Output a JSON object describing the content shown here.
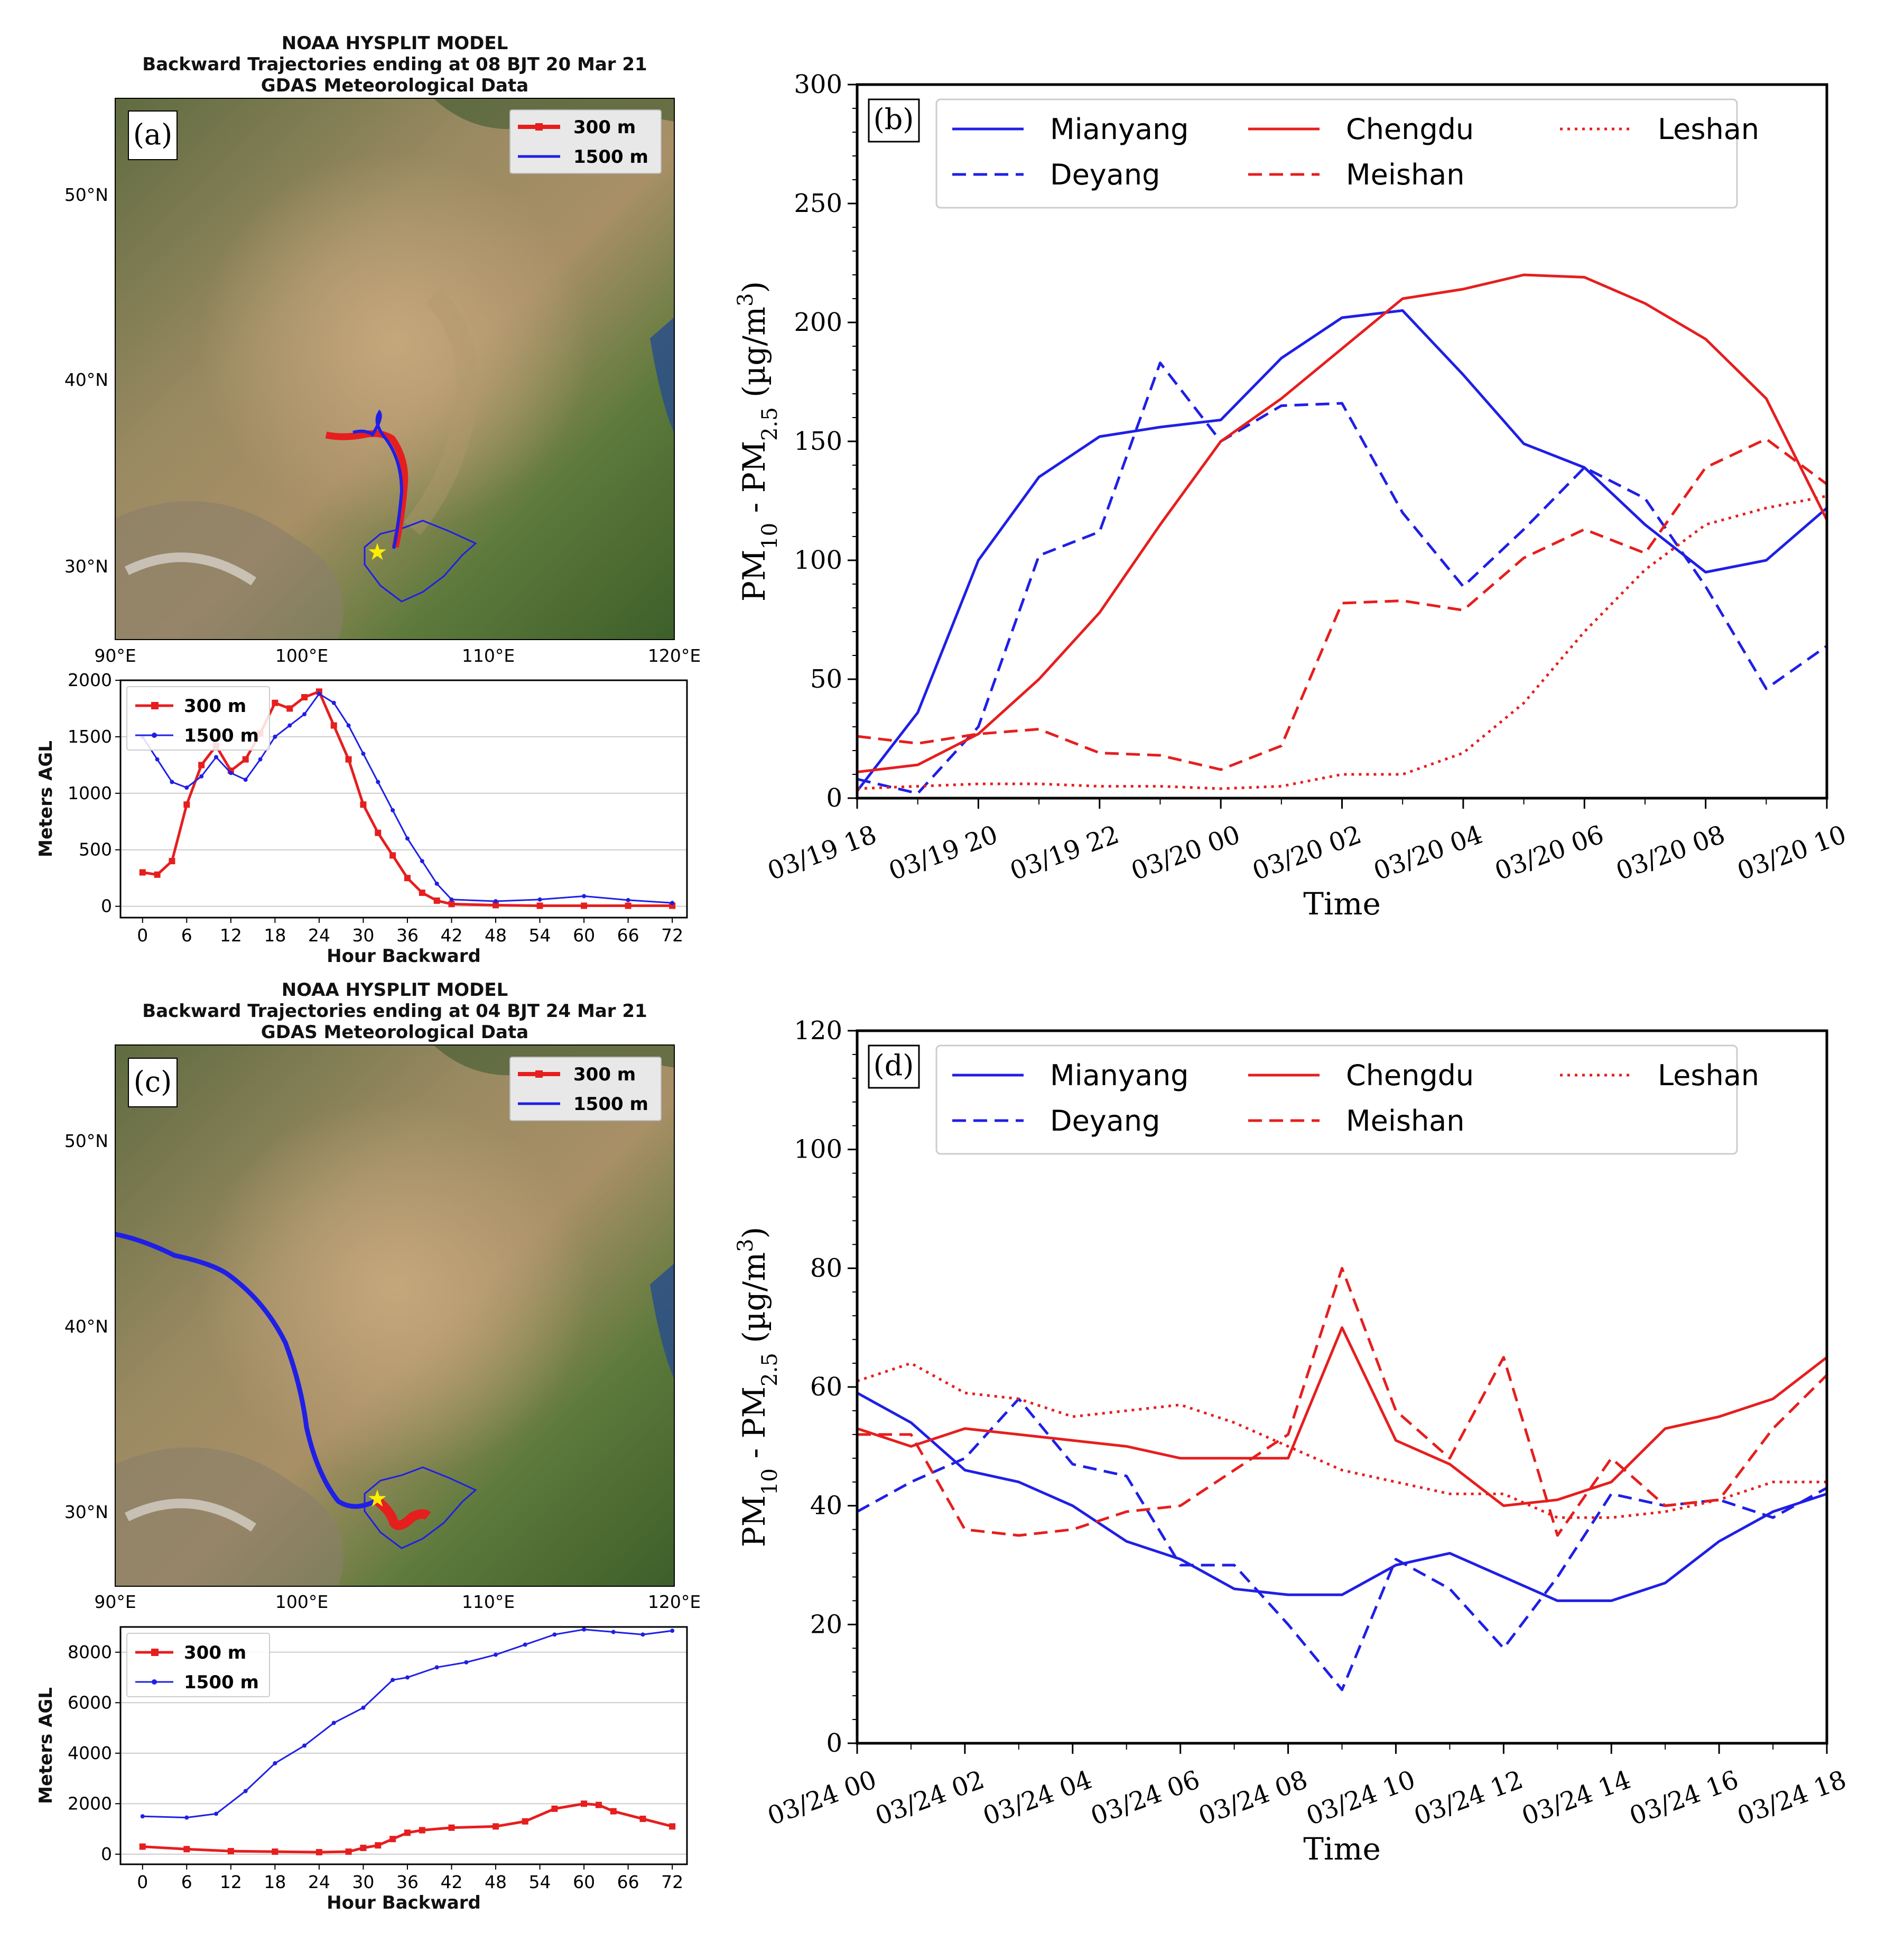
{
  "panels": {
    "a": {
      "label": "(a)",
      "title": [
        "NOAA HYSPLIT MODEL",
        "Backward Trajectories ending at 08 BJT 20 Mar 21",
        "GDAS Meteorological Data"
      ],
      "lat_ticks": [
        "50°N",
        "40°N",
        "30°N"
      ],
      "lon_ticks": [
        "90°E",
        "100°E",
        "110°E",
        "120°E"
      ],
      "legend": [
        "300 m",
        "1500 m"
      ]
    },
    "c": {
      "label": "(c)",
      "title": [
        "NOAA HYSPLIT MODEL",
        "Backward Trajectories ending at 04 BJT 24 Mar 21",
        "GDAS Meteorological Data"
      ],
      "lat_ticks": [
        "50°N",
        "40°N",
        "30°N"
      ],
      "lon_ticks": [
        "90°E",
        "100°E",
        "110°E",
        "120°E"
      ],
      "legend": [
        "300 m",
        "1500 m"
      ]
    },
    "b": {
      "label": "(b)"
    },
    "d": {
      "label": "(d)"
    }
  },
  "colors": {
    "blue": "#1f1fe6",
    "red": "#e61e1e",
    "star": "#ffee00"
  },
  "chart_data": [
    {
      "id": "a-height",
      "type": "line",
      "xlabel": "Hour Backward",
      "ylabel": "Meters AGL",
      "xlim": [
        -3,
        74
      ],
      "ylim": [
        -100,
        2000
      ],
      "xticks": [
        0,
        6,
        12,
        18,
        24,
        30,
        36,
        42,
        48,
        54,
        60,
        66,
        72
      ],
      "yticks": [
        0,
        500,
        1000,
        1500,
        2000
      ],
      "grid": true,
      "legend_position": "top-left",
      "series": [
        {
          "name": "300 m",
          "color": "#e61e1e",
          "x": [
            0,
            2,
            4,
            6,
            8,
            10,
            12,
            14,
            16,
            18,
            20,
            22,
            24,
            26,
            28,
            30,
            32,
            34,
            36,
            38,
            40,
            42,
            48,
            54,
            60,
            66,
            72
          ],
          "y": [
            300,
            280,
            400,
            900,
            1250,
            1420,
            1200,
            1300,
            1530,
            1800,
            1750,
            1850,
            1900,
            1600,
            1300,
            900,
            650,
            450,
            250,
            120,
            50,
            20,
            10,
            5,
            5,
            5,
            5
          ]
        },
        {
          "name": "1500 m",
          "color": "#1f1fe6",
          "x": [
            0,
            2,
            4,
            6,
            8,
            10,
            12,
            14,
            16,
            18,
            20,
            22,
            24,
            26,
            28,
            30,
            32,
            34,
            36,
            38,
            40,
            42,
            48,
            54,
            60,
            66,
            72
          ],
          "y": [
            1500,
            1300,
            1100,
            1050,
            1150,
            1320,
            1180,
            1120,
            1300,
            1500,
            1600,
            1700,
            1880,
            1800,
            1600,
            1350,
            1100,
            850,
            600,
            400,
            200,
            60,
            45,
            60,
            90,
            55,
            30
          ]
        }
      ]
    },
    {
      "id": "c-height",
      "type": "line",
      "xlabel": "Hour Backward",
      "ylabel": "Meters AGL",
      "xlim": [
        -3,
        74
      ],
      "ylim": [
        -400,
        9000
      ],
      "xticks": [
        0,
        6,
        12,
        18,
        24,
        30,
        36,
        42,
        48,
        54,
        60,
        66,
        72
      ],
      "yticks": [
        0,
        2000,
        4000,
        6000,
        8000
      ],
      "grid": true,
      "legend_position": "top-left",
      "series": [
        {
          "name": "300 m",
          "color": "#e61e1e",
          "x": [
            0,
            6,
            12,
            18,
            24,
            28,
            30,
            32,
            34,
            36,
            38,
            42,
            48,
            52,
            56,
            60,
            62,
            64,
            68,
            72
          ],
          "y": [
            300,
            200,
            120,
            100,
            80,
            100,
            250,
            350,
            600,
            850,
            950,
            1050,
            1100,
            1300,
            1800,
            2000,
            1950,
            1700,
            1400,
            1100
          ]
        },
        {
          "name": "1500 m",
          "color": "#1f1fe6",
          "x": [
            0,
            6,
            10,
            14,
            18,
            22,
            26,
            30,
            34,
            36,
            40,
            44,
            48,
            52,
            56,
            60,
            64,
            68,
            72
          ],
          "y": [
            1500,
            1450,
            1600,
            2500,
            3600,
            4300,
            5200,
            5800,
            6900,
            7000,
            7400,
            7600,
            7900,
            8300,
            8700,
            8900,
            8800,
            8700,
            8850
          ]
        }
      ]
    },
    {
      "id": "b",
      "type": "line",
      "xlabel": "Time",
      "ylabel": "PM10 - PM2.5 (µg/m3)",
      "ylim": [
        0,
        300
      ],
      "yticks": [
        0,
        50,
        100,
        150,
        200,
        250,
        300
      ],
      "categories": [
        "03/19 18",
        "03/19 19",
        "03/19 20",
        "03/19 21",
        "03/19 22",
        "03/19 23",
        "03/20 00",
        "03/20 01",
        "03/20 02",
        "03/20 03",
        "03/20 04",
        "03/20 05",
        "03/20 06",
        "03/20 07",
        "03/20 08",
        "03/20 09",
        "03/20 10"
      ],
      "xtick_labels": [
        "03/19 18",
        "03/19 20",
        "03/19 22",
        "03/20 00",
        "03/20 02",
        "03/20 04",
        "03/20 06",
        "03/20 08",
        "03/20 10"
      ],
      "legend_position": "top",
      "series": [
        {
          "name": "Mianyang",
          "color": "#1f1fe6",
          "dash": "solid",
          "values": [
            3,
            36,
            100,
            135,
            152,
            156,
            159,
            185,
            202,
            205,
            178,
            149,
            139,
            115,
            95,
            100,
            122
          ]
        },
        {
          "name": "Deyang",
          "color": "#1f1fe6",
          "dash": "dashed",
          "values": [
            8,
            2,
            30,
            102,
            112,
            183,
            150,
            165,
            166,
            120,
            89,
            113,
            139,
            126,
            89,
            46,
            64
          ]
        },
        {
          "name": "Chengdu",
          "color": "#e61e1e",
          "dash": "solid",
          "values": [
            11,
            14,
            27,
            50,
            78,
            115,
            150,
            168,
            189,
            210,
            214,
            220,
            219,
            208,
            193,
            168,
            117
          ]
        },
        {
          "name": "Meishan",
          "color": "#e61e1e",
          "dash": "dashed",
          "values": [
            26,
            23,
            27,
            29,
            19,
            18,
            12,
            22,
            82,
            83,
            79,
            101,
            113,
            103,
            139,
            151,
            132
          ]
        },
        {
          "name": "Leshan",
          "color": "#e61e1e",
          "dash": "dotted",
          "values": [
            4,
            5,
            6,
            6,
            5,
            5,
            4,
            5,
            10,
            10,
            19,
            40,
            70,
            96,
            115,
            122,
            127
          ]
        }
      ]
    },
    {
      "id": "d",
      "type": "line",
      "xlabel": "Time",
      "ylabel": "PM10 - PM2.5 (µg/m3)",
      "ylim": [
        0,
        120
      ],
      "yticks": [
        0,
        20,
        40,
        60,
        80,
        100,
        120
      ],
      "categories": [
        "03/24 00",
        "03/24 01",
        "03/24 02",
        "03/24 03",
        "03/24 04",
        "03/24 05",
        "03/24 06",
        "03/24 07",
        "03/24 08",
        "03/24 09",
        "03/24 10",
        "03/24 11",
        "03/24 12",
        "03/24 13",
        "03/24 14",
        "03/24 15",
        "03/24 16",
        "03/24 17",
        "03/24 18"
      ],
      "xtick_labels": [
        "03/24 00",
        "03/24 02",
        "03/24 04",
        "03/24 06",
        "03/24 08",
        "03/24 10",
        "03/24 12",
        "03/24 14",
        "03/24 16",
        "03/24 18"
      ],
      "legend_position": "top",
      "series": [
        {
          "name": "Mianyang",
          "color": "#1f1fe6",
          "dash": "solid",
          "values": [
            59,
            54,
            46,
            44,
            40,
            34,
            31,
            26,
            25,
            25,
            30,
            32,
            28,
            24,
            24,
            27,
            34,
            39,
            42
          ]
        },
        {
          "name": "Deyang",
          "color": "#1f1fe6",
          "dash": "dashed",
          "values": [
            39,
            44,
            48,
            58,
            47,
            45,
            30,
            30,
            20,
            9,
            31,
            26,
            16,
            28,
            42,
            40,
            41,
            38,
            43
          ]
        },
        {
          "name": "Chengdu",
          "color": "#e61e1e",
          "dash": "solid",
          "values": [
            53,
            50,
            53,
            52,
            51,
            50,
            48,
            48,
            48,
            70,
            51,
            47,
            40,
            41,
            44,
            53,
            55,
            58,
            65
          ]
        },
        {
          "name": "Meishan",
          "color": "#e61e1e",
          "dash": "dashed",
          "values": [
            52,
            52,
            36,
            35,
            36,
            39,
            40,
            46,
            52,
            80,
            56,
            48,
            65,
            35,
            48,
            40,
            41,
            53,
            62
          ]
        },
        {
          "name": "Leshan",
          "color": "#e61e1e",
          "dash": "dotted",
          "values": [
            61,
            64,
            59,
            58,
            55,
            56,
            57,
            54,
            50,
            46,
            44,
            42,
            42,
            38,
            38,
            39,
            41,
            44,
            44
          ]
        }
      ]
    }
  ]
}
